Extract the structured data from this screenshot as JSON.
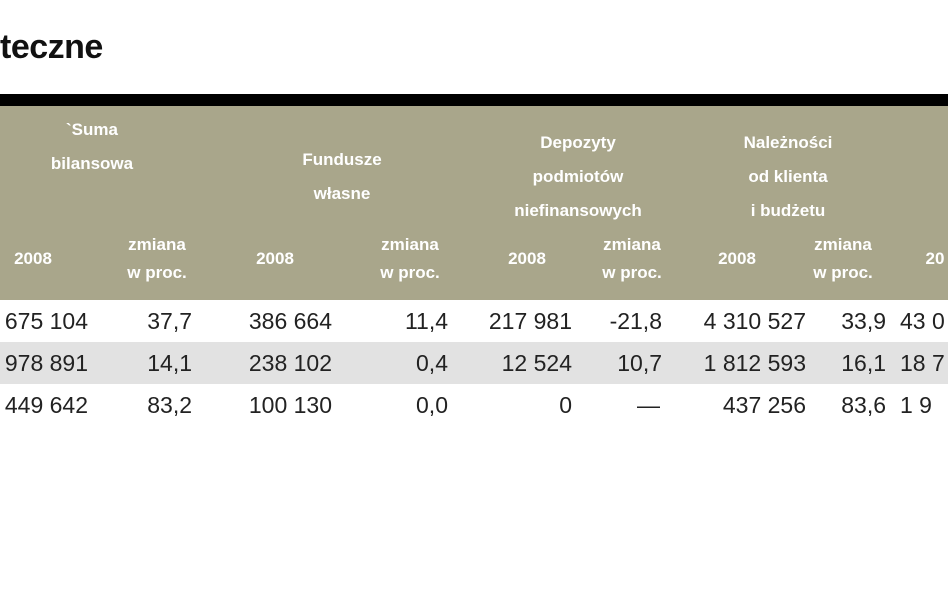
{
  "header": {
    "title": "teczne"
  },
  "table": {
    "groups": [
      [
        "`Suma",
        "bilansowa"
      ],
      [
        "Fundusze",
        "własne"
      ],
      [
        "Depozyty",
        "podmiotów",
        "niefinansowych"
      ],
      [
        "Należności",
        "od klienta",
        "i budżetu"
      ]
    ],
    "subheaders": [
      [
        "2008"
      ],
      [
        "zmiana",
        "w proc."
      ],
      [
        "2008"
      ],
      [
        "zmiana",
        "w proc."
      ],
      [
        "2008"
      ],
      [
        "zmiana",
        "w proc."
      ],
      [
        "2008"
      ],
      [
        "zmiana",
        "w proc."
      ],
      [
        "20"
      ]
    ],
    "rows": [
      [
        "675 104",
        "37,7",
        "386 664",
        "11,4",
        "217 981",
        "-21,8",
        "4 310 527",
        "33,9",
        "43 0"
      ],
      [
        "978 891",
        "14,1",
        "238 102",
        "0,4",
        "12 524",
        "10,7",
        "1 812 593",
        "16,1",
        "18 7"
      ],
      [
        "449 642",
        "83,2",
        "100 130",
        "0,0",
        "0",
        "—",
        "437 256",
        "83,6",
        "1 9"
      ]
    ]
  }
}
